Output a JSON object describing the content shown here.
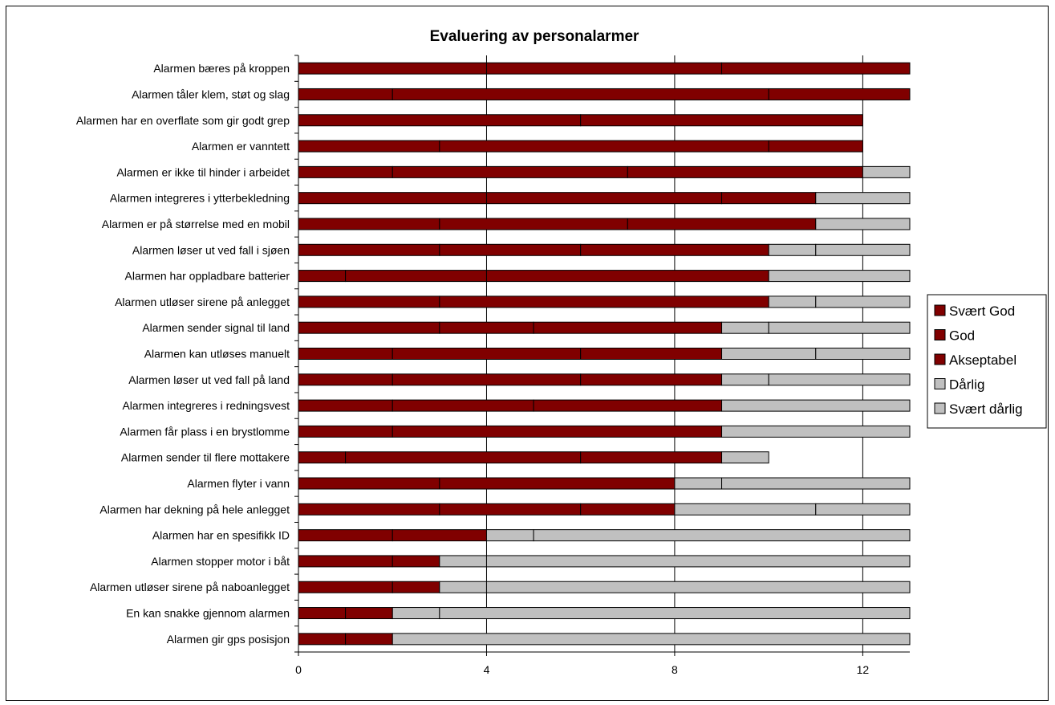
{
  "chart_data": {
    "type": "bar",
    "orientation": "horizontal",
    "stacked": true,
    "title": "Evaluering av personalarmer",
    "xlabel": "",
    "ylabel": "",
    "xlim": [
      0,
      13
    ],
    "x_ticks": [
      "0",
      "4",
      "8",
      "12"
    ],
    "x_tick_values": [
      0,
      4,
      8,
      12
    ],
    "grid": "vertical",
    "legend_position": "right",
    "categories": [
      "Alarmen bæres på kroppen",
      "Alarmen tåler klem, støt og slag",
      "Alarmen har en overflate som gir godt grep",
      "Alarmen er vanntett",
      "Alarmen er ikke til hinder i arbeidet",
      "Alarmen integreres i ytterbekledning",
      "Alarmen er på størrelse med en mobil",
      "Alarmen løser ut ved fall i sjøen",
      "Alarmen har oppladbare batterier",
      "Alarmen utløser sirene på anlegget",
      "Alarmen sender signal til land",
      "Alarmen kan utløses manuelt",
      "Alarmen løser ut ved fall på land",
      "Alarmen integreres i redningsvest",
      "Alarmen får plass i en brystlomme",
      "Alarmen sender til flere mottakere",
      "Alarmen flyter i vann",
      "Alarmen har dekning på hele anlegget",
      "Alarmen har en spesifikk ID",
      "Alarmen stopper motor i båt",
      "Alarmen utløser sirene på naboanlegget",
      "En kan snakke gjennom alarmen",
      "Alarmen gir gps posisjon"
    ],
    "series": [
      {
        "name": "Svært God",
        "color": "#800000",
        "values": [
          4,
          2,
          6,
          3,
          2,
          4,
          3,
          3,
          1,
          3,
          3,
          2,
          2,
          2,
          2,
          1,
          3,
          3,
          2,
          2,
          2,
          1,
          1
        ]
      },
      {
        "name": "God",
        "color": "#800000",
        "values": [
          5,
          8,
          0,
          7,
          5,
          5,
          4,
          3,
          3,
          7,
          2,
          4,
          4,
          3,
          7,
          5,
          5,
          3,
          2,
          1,
          1,
          1,
          1
        ]
      },
      {
        "name": "Akseptabel",
        "color": "#800000",
        "values": [
          4,
          3,
          6,
          2,
          5,
          2,
          4,
          4,
          6,
          0,
          4,
          3,
          3,
          4,
          0,
          3,
          0,
          2,
          0,
          0,
          0,
          0,
          0
        ]
      },
      {
        "name": "Dårlig",
        "color": "#c0c0c0",
        "values": [
          0,
          0,
          0,
          0,
          1,
          0,
          0,
          1,
          0,
          1,
          1,
          2,
          1,
          0,
          0,
          1,
          1,
          3,
          1,
          1,
          1,
          1,
          0
        ]
      },
      {
        "name": "Svært dårlig",
        "color": "#c0c0c0",
        "values": [
          0,
          0,
          0,
          0,
          0,
          2,
          2,
          2,
          3,
          2,
          3,
          2,
          3,
          4,
          4,
          0,
          4,
          2,
          8,
          9,
          9,
          10,
          11
        ]
      }
    ]
  }
}
